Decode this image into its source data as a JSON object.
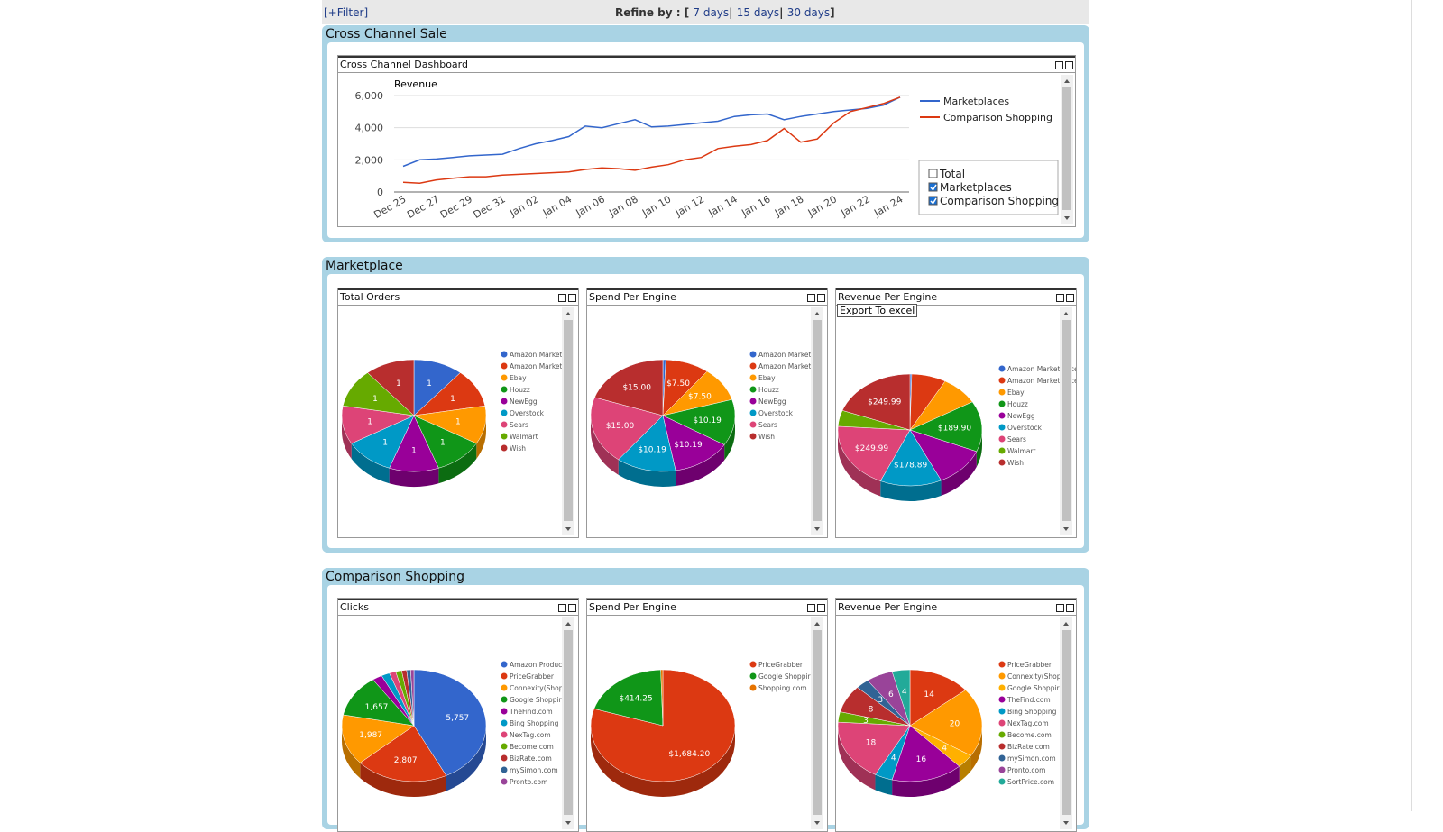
{
  "toolbar": {
    "filter": "[+Filter]",
    "refine_prefix": "Refine by : [",
    "links": [
      "7 days",
      "15 days",
      "30 days"
    ],
    "separator": "|",
    "suffix": "]"
  },
  "sections": [
    {
      "title": "Cross Channel Sale"
    },
    {
      "title": "Marketplace"
    },
    {
      "title": "Comparison Shopping"
    }
  ],
  "export_button": "Export To excel",
  "chart_data": [
    {
      "type": "line",
      "title": "Cross Channel Dashboard",
      "subtitle": "Revenue",
      "categories": [
        "Dec 25",
        null,
        "Dec 27",
        null,
        "Dec 29",
        null,
        "Dec 31",
        null,
        "Jan 02",
        null,
        "Jan 04",
        null,
        "Jan 06",
        null,
        "Jan 08",
        null,
        "Jan 10",
        null,
        "Jan 12",
        null,
        "Jan 14",
        null,
        "Jan 16",
        null,
        "Jan 18",
        null,
        "Jan 20",
        null,
        "Jan 22",
        null,
        "Jan 24"
      ],
      "series": [
        {
          "name": "Marketplaces",
          "color": "#3366cc",
          "values": [
            1600,
            2000,
            2050,
            2150,
            2250,
            2300,
            2350,
            2700,
            3000,
            3200,
            3450,
            4100,
            4000,
            4250,
            4500,
            4050,
            4100,
            4200,
            4300,
            4400,
            4700,
            4800,
            4850,
            4500,
            4700,
            4850,
            5000,
            5100,
            5200,
            5400,
            5900
          ]
        },
        {
          "name": "Comparison Shopping",
          "color": "#dc3912",
          "values": [
            600,
            550,
            750,
            850,
            950,
            950,
            1050,
            1100,
            1150,
            1200,
            1250,
            1400,
            1500,
            1450,
            1350,
            1550,
            1700,
            2000,
            2150,
            2700,
            2850,
            2950,
            3200,
            3950,
            3100,
            3300,
            4300,
            5000,
            5250,
            5500,
            5900
          ]
        }
      ],
      "ylim": [
        0,
        6000
      ],
      "yticks": [
        0,
        {
          "value": 2000,
          "label": "2,000"
        },
        {
          "value": 4000,
          "label": "4,000"
        },
        {
          "value": 6000,
          "label": "6,000"
        }
      ],
      "grid": true,
      "toggles": {
        "total_label": "Total",
        "checked": [
          false,
          true,
          true
        ]
      }
    },
    {
      "type": "pie",
      "title": "Total Orders",
      "categories": [
        "Amazon Market UK",
        "Amazon Market US",
        "Ebay",
        "Houzz",
        "NewEgg",
        "Overstock",
        "Sears",
        "Walmart",
        "Wish"
      ],
      "values": [
        1,
        1,
        1,
        1,
        1,
        1,
        1,
        1,
        1
      ],
      "colors": [
        "#3366cc",
        "#dc3912",
        "#ff9900",
        "#109618",
        "#990099",
        "#0099c6",
        "#dd4477",
        "#66aa00",
        "#b82e2e"
      ]
    },
    {
      "type": "pie",
      "title": "Spend Per Engine",
      "categories": [
        "Amazon Market UK",
        "Amazon Market US",
        "Ebay",
        "Houzz",
        "NewEgg",
        "Overstock",
        "Sears",
        "Wish"
      ],
      "values": [
        0.5,
        7.5,
        7.5,
        10.19,
        10.19,
        10.19,
        15,
        15
      ],
      "value_labels": [
        null,
        "$7.50",
        "$7.50",
        "$10.19",
        "$10.19",
        "$10.19",
        "$15.00",
        "$15.00"
      ],
      "colors": [
        "#3366cc",
        "#dc3912",
        "#ff9900",
        "#109618",
        "#990099",
        "#0099c6",
        "#dd4477",
        "#b82e2e"
      ]
    },
    {
      "type": "pie",
      "title": "Revenue Per Engine",
      "categories": [
        "Amazon Marketplace UK",
        "Amazon Marketplace US",
        "Ebay",
        "Houzz",
        "NewEgg",
        "Overstock",
        "Sears",
        "Walmart",
        "Wish"
      ],
      "values": [
        5,
        100,
        110,
        189.9,
        150,
        178.89,
        249.99,
        60,
        249.99
      ],
      "value_labels": [
        null,
        null,
        null,
        "$189.90",
        null,
        "$178.89",
        "$249.99",
        null,
        "$249.99"
      ],
      "colors": [
        "#3366cc",
        "#dc3912",
        "#ff9900",
        "#109618",
        "#990099",
        "#0099c6",
        "#dd4477",
        "#66aa00",
        "#b82e2e"
      ]
    },
    {
      "type": "pie",
      "title": "Clicks",
      "categories": [
        "Amazon Produc",
        "PriceGrabber",
        "Connexity(Shop",
        "Google Shoppir",
        "TheFind.com",
        "Bing Shopping",
        "NexTag.com",
        "Become.com",
        "BizRate.com",
        "mySimon.com",
        "Pronto.com"
      ],
      "values": [
        5757,
        2807,
        1987,
        1657,
        300,
        250,
        200,
        180,
        150,
        120,
        100
      ],
      "value_labels": [
        "5,757",
        "2,807",
        "1,987",
        "1,657",
        null,
        null,
        null,
        null,
        null,
        null,
        null
      ],
      "colors": [
        "#3366cc",
        "#dc3912",
        "#ff9900",
        "#109618",
        "#990099",
        "#0099c6",
        "#dd4477",
        "#66aa00",
        "#b82e2e",
        "#316395",
        "#994499"
      ]
    },
    {
      "type": "pie",
      "title": "Spend Per Engine",
      "categories": [
        "PriceGrabber",
        "Google Shoppir",
        "Shopping.com"
      ],
      "values": [
        1684.2,
        414.25,
        10
      ],
      "value_labels": [
        "$1,684.20",
        "$414.25",
        null
      ],
      "colors": [
        "#dc3912",
        "#109618",
        "#e67300"
      ]
    },
    {
      "type": "pie",
      "title": "Revenue Per Engine",
      "categories": [
        "PriceGrabber",
        "Connexity(Shop",
        "Google Shoppir",
        "TheFind.com",
        "Bing Shopping",
        "NexTag.com",
        "Become.com",
        "BizRate.com",
        "mySimon.com",
        "Pronto.com",
        "SortPrice.com"
      ],
      "values": [
        14,
        20,
        4,
        16,
        4,
        18,
        3,
        8,
        3,
        6,
        4
      ],
      "colors": [
        "#dc3912",
        "#ff9900",
        "#ffb000",
        "#990099",
        "#0099c6",
        "#dd4477",
        "#66aa00",
        "#b82e2e",
        "#316395",
        "#994499",
        "#22aa99"
      ]
    }
  ]
}
